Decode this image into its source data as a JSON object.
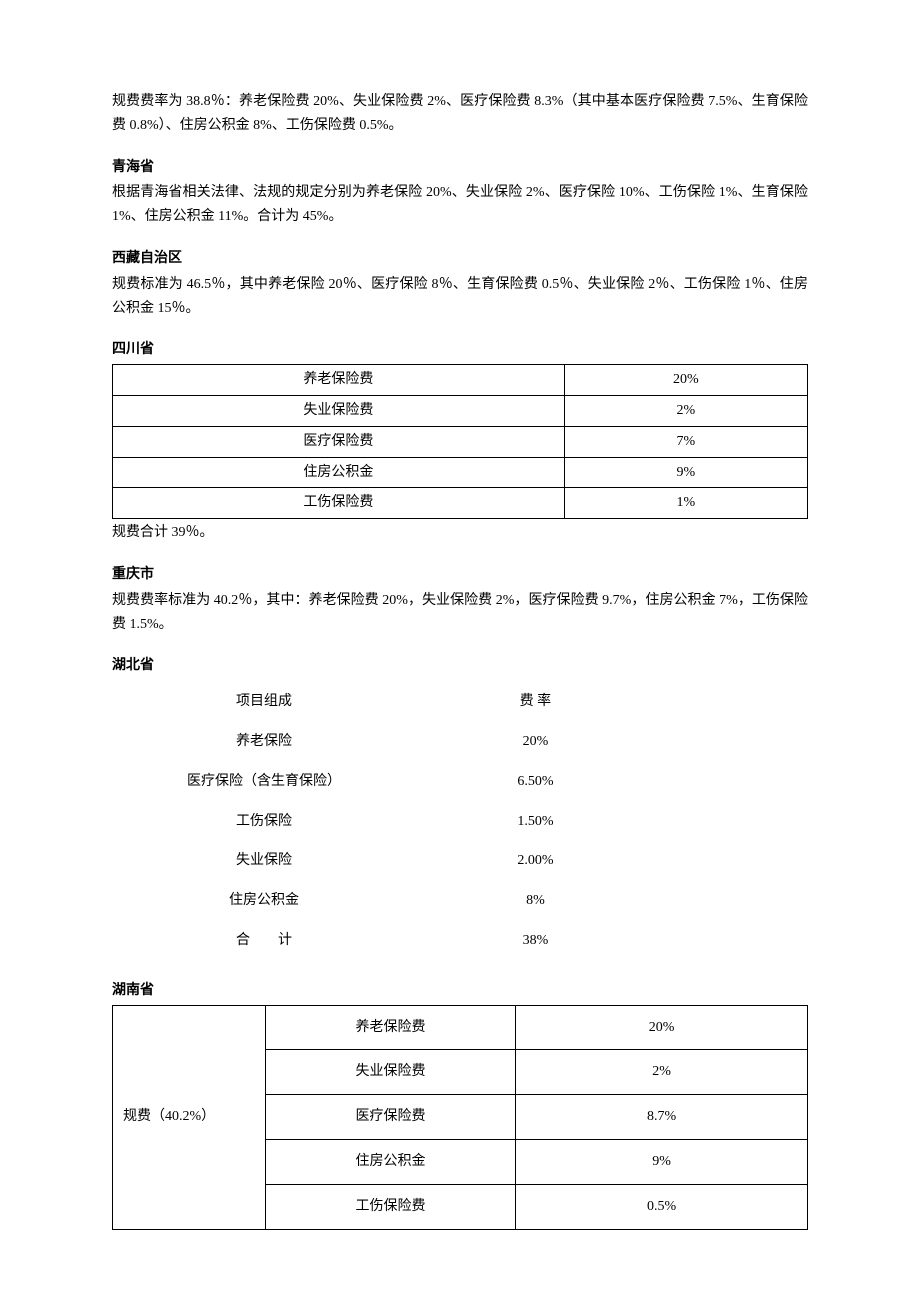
{
  "intro": "规费费率为 38.8％：养老保险费 20%、失业保险费 2%、医疗保险费 8.3%（其中基本医疗保险费 7.5%、生育保险费 0.8%）、住房公积金 8%、工伤保险费 0.5%。",
  "qinghai": {
    "title": "青海省",
    "text": "根据青海省相关法律、法规的规定分别为养老保险 20%、失业保险 2%、医疗保险 10%、工伤保险 1%、生育保险 1%、住房公积金 11%。合计为 45%。"
  },
  "xizang": {
    "title": "西藏自治区",
    "text": "规费标准为 46.5％，其中养老保险 20％、医疗保险 8％、生育保险费 0.5％、失业保险 2％、工伤保险 1％、住房公积金 15％。"
  },
  "sichuan": {
    "title": "四川省",
    "rows": [
      {
        "label": "养老保险费",
        "value": "20%"
      },
      {
        "label": "失业保险费",
        "value": "2%"
      },
      {
        "label": "医疗保险费",
        "value": "7%"
      },
      {
        "label": "住房公积金",
        "value": "9%"
      },
      {
        "label": "工伤保险费",
        "value": "1%"
      }
    ],
    "note": "规费合计 39％。"
  },
  "chongqing": {
    "title": "重庆市",
    "text": "规费费率标准为 40.2％，其中：养老保险费 20%，失业保险费 2%，医疗保险费 9.7%，住房公积金 7%，工伤保险费 1.5%。"
  },
  "hubei": {
    "title": "湖北省",
    "header": {
      "left": "项目组成",
      "right": "费 率"
    },
    "rows": [
      {
        "label": "养老保险",
        "value": "20%"
      },
      {
        "label": "医疗保险（含生育保险）",
        "value": "6.50%"
      },
      {
        "label": "工伤保险",
        "value": "1.50%"
      },
      {
        "label": "失业保险",
        "value": "2.00%"
      },
      {
        "label": "住房公积金",
        "value": "8%"
      },
      {
        "label": "合　　计",
        "value": "38%"
      }
    ]
  },
  "hunan": {
    "title": "湖南省",
    "group_label": "规费（40.2%）",
    "rows": [
      {
        "label": "养老保险费",
        "value": "20%"
      },
      {
        "label": "失业保险费",
        "value": "2%"
      },
      {
        "label": "医疗保险费",
        "value": "8.7%"
      },
      {
        "label": "住房公积金",
        "value": "9%"
      },
      {
        "label": "工伤保险费",
        "value": "0.5%"
      }
    ]
  }
}
